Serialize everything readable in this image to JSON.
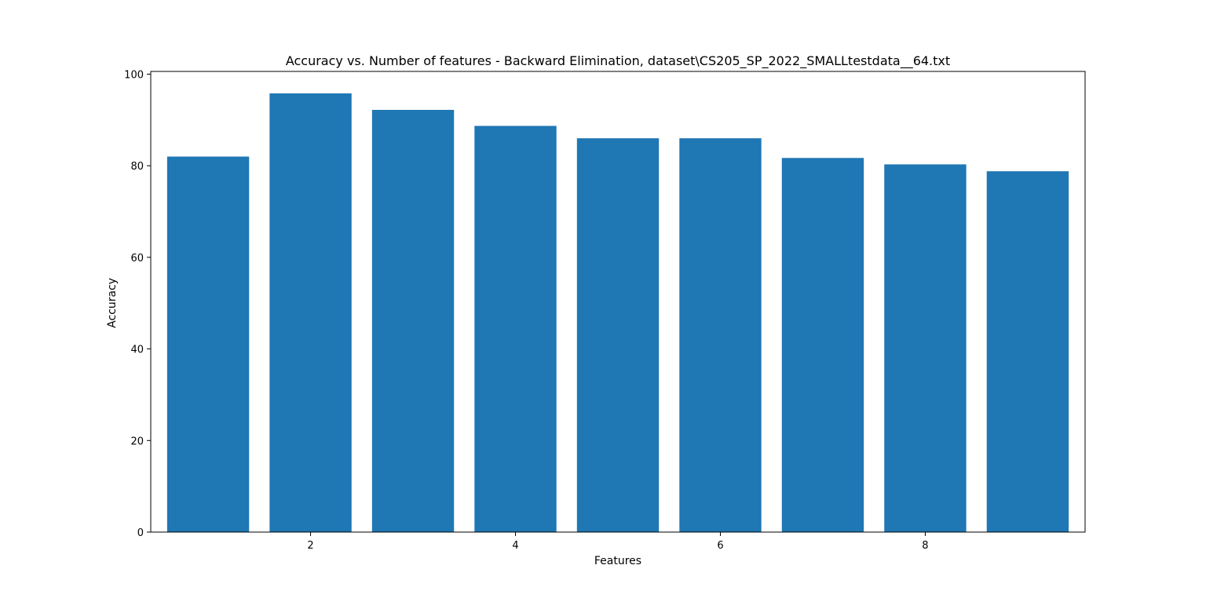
{
  "chart_data": {
    "type": "bar",
    "title": "Accuracy vs. Number of features - Backward Elimination, dataset\\CS205_SP_2022_SMALLtestdata__64.txt",
    "xlabel": "Features",
    "ylabel": "Accuracy",
    "x": [
      1,
      2,
      3,
      4,
      5,
      6,
      7,
      8,
      9
    ],
    "values": [
      82.0,
      95.8,
      92.2,
      88.7,
      86.0,
      86.0,
      81.7,
      80.3,
      78.8
    ],
    "bar_width": 0.8,
    "xlim": [
      0.44,
      9.56
    ],
    "ylim": [
      0,
      100.6
    ],
    "xticks": [
      2,
      4,
      6,
      8
    ],
    "yticks": [
      0,
      20,
      40,
      60,
      80,
      100
    ],
    "grid": false,
    "bar_color": "#1f77b4"
  }
}
